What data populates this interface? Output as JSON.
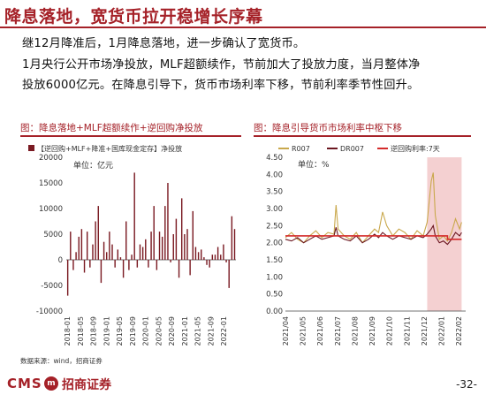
{
  "page": {
    "title": "降息落地，宽货币拉开稳增长序幕",
    "body_lines": [
      "继12月降准后，1月降息落地，进一步确认了宽货币。",
      "1月央行公开市场净投放，MLF超额续作，节前加大了投放力度，当月整体净",
      "投放6000亿元。在降息引导下，货币市场利率下移，节前利率季节性回升。"
    ],
    "source": "数据来源：wind，招商证券",
    "footer": {
      "brand": "CMS",
      "logo_char": "m",
      "firm": "招商证券",
      "page_number": "-32-"
    }
  },
  "colors": {
    "accent": "#a52128",
    "bar": "#7a1a22",
    "r007": "#c9a84c",
    "dr007": "#6b1620",
    "policy": "#d42b2b",
    "shade": "#f1c4c6"
  },
  "chart_data": [
    {
      "type": "bar",
      "title": "图：降息落地+MLF超额续作+逆回购净投放",
      "legend": "【逆回购+MLF+降准+国库现金定存】净投放",
      "unit": "单位：亿元",
      "ylim": [
        -10000,
        20000
      ],
      "yticks": [
        "20000",
        "15000",
        "10000",
        "5000",
        "0",
        "-5000",
        "-10000"
      ],
      "xticks": [
        "2018-01",
        "2018-05",
        "2018-09",
        "2019-01",
        "2019-05",
        "2019-09",
        "2020-01",
        "2020-05",
        "2020-09",
        "2021-01",
        "2021-05",
        "2021-09",
        "2022-01"
      ],
      "values": [
        -7000,
        5500,
        -2000,
        1500,
        4500,
        6000,
        -2500,
        5500,
        -1500,
        3000,
        7500,
        10500,
        -4500,
        3500,
        1500,
        5500,
        3000,
        -1500,
        2000,
        500,
        -3500,
        7500,
        -2000,
        1000,
        17000,
        -1500,
        3000,
        2500,
        4000,
        -1500,
        5500,
        10500,
        -2000,
        5500,
        4500,
        10500,
        15000,
        -500,
        5000,
        8000,
        -3500,
        12000,
        5000,
        6000,
        -3000,
        9500,
        2500,
        1500,
        2000,
        500,
        -1000,
        -1500,
        1000,
        1000,
        2500,
        1000,
        3000,
        -500,
        -5500,
        8500,
        6000
      ]
    },
    {
      "type": "line",
      "title": "图：降息引导货币市场利率中枢下移",
      "unit": "单位：%",
      "series_names": [
        "R007",
        "DR007",
        "逆回购利率:7天"
      ],
      "ylim": [
        0,
        4.5
      ],
      "yticks": [
        "4.50",
        "4.00",
        "3.50",
        "3.00",
        "2.50",
        "2.00",
        "1.50",
        "1.00",
        "0.50",
        "0.00"
      ],
      "xticks": [
        "2021/04",
        "2021/05",
        "2021/06",
        "2021/07",
        "2021/08",
        "2021/09",
        "2021/10",
        "2021/11",
        "2021/12",
        "2022/01",
        "2022/02"
      ],
      "shaded_range": [
        2021.95,
        2022.12
      ],
      "series": [
        {
          "name": "R007",
          "values": [
            [
              2021.25,
              2.15
            ],
            [
              2021.28,
              2.3
            ],
            [
              2021.31,
              2.1
            ],
            [
              2021.34,
              2.0
            ],
            [
              2021.37,
              2.2
            ],
            [
              2021.4,
              2.35
            ],
            [
              2021.43,
              2.15
            ],
            [
              2021.46,
              2.3
            ],
            [
              2021.49,
              2.25
            ],
            [
              2021.5,
              3.1
            ],
            [
              2021.51,
              2.4
            ],
            [
              2021.54,
              2.2
            ],
            [
              2021.57,
              2.1
            ],
            [
              2021.6,
              2.3
            ],
            [
              2021.63,
              2.0
            ],
            [
              2021.66,
              2.2
            ],
            [
              2021.69,
              2.4
            ],
            [
              2021.71,
              2.3
            ],
            [
              2021.73,
              2.9
            ],
            [
              2021.75,
              2.5
            ],
            [
              2021.78,
              2.2
            ],
            [
              2021.81,
              2.4
            ],
            [
              2021.84,
              2.3
            ],
            [
              2021.87,
              2.1
            ],
            [
              2021.9,
              2.35
            ],
            [
              2021.93,
              2.2
            ],
            [
              2021.95,
              2.6
            ],
            [
              2021.97,
              3.8
            ],
            [
              2021.98,
              4.05
            ],
            [
              2021.99,
              2.8
            ],
            [
              2022.01,
              2.1
            ],
            [
              2022.03,
              2.2
            ],
            [
              2022.05,
              2.05
            ],
            [
              2022.07,
              2.3
            ],
            [
              2022.09,
              2.7
            ],
            [
              2022.11,
              2.4
            ],
            [
              2022.12,
              2.6
            ]
          ]
        },
        {
          "name": "DR007",
          "values": [
            [
              2021.25,
              2.1
            ],
            [
              2021.28,
              2.05
            ],
            [
              2021.31,
              2.15
            ],
            [
              2021.34,
              2.0
            ],
            [
              2021.37,
              2.1
            ],
            [
              2021.4,
              2.2
            ],
            [
              2021.43,
              2.1
            ],
            [
              2021.46,
              2.15
            ],
            [
              2021.49,
              2.2
            ],
            [
              2021.5,
              2.45
            ],
            [
              2021.51,
              2.2
            ],
            [
              2021.54,
              2.1
            ],
            [
              2021.57,
              2.05
            ],
            [
              2021.6,
              2.2
            ],
            [
              2021.63,
              2.0
            ],
            [
              2021.66,
              2.1
            ],
            [
              2021.69,
              2.25
            ],
            [
              2021.71,
              2.15
            ],
            [
              2021.73,
              2.3
            ],
            [
              2021.75,
              2.2
            ],
            [
              2021.78,
              2.1
            ],
            [
              2021.81,
              2.2
            ],
            [
              2021.84,
              2.15
            ],
            [
              2021.87,
              2.1
            ],
            [
              2021.9,
              2.2
            ],
            [
              2021.93,
              2.15
            ],
            [
              2021.95,
              2.25
            ],
            [
              2021.97,
              2.4
            ],
            [
              2021.98,
              2.5
            ],
            [
              2021.99,
              2.2
            ],
            [
              2022.01,
              2.0
            ],
            [
              2022.03,
              2.05
            ],
            [
              2022.05,
              1.95
            ],
            [
              2022.07,
              2.1
            ],
            [
              2022.09,
              2.3
            ],
            [
              2022.11,
              2.2
            ],
            [
              2022.12,
              2.3
            ]
          ]
        },
        {
          "name": "逆回购利率:7天",
          "values": [
            [
              2021.25,
              2.2
            ],
            [
              2022.05,
              2.2
            ],
            [
              2022.05,
              2.1
            ],
            [
              2022.12,
              2.1
            ]
          ]
        }
      ]
    }
  ]
}
